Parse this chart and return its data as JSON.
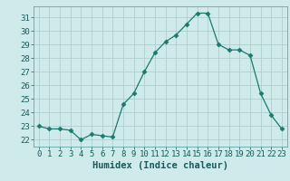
{
  "x": [
    0,
    1,
    2,
    3,
    4,
    5,
    6,
    7,
    8,
    9,
    10,
    11,
    12,
    13,
    14,
    15,
    16,
    17,
    18,
    19,
    20,
    21,
    22,
    23
  ],
  "y": [
    23.0,
    22.8,
    22.8,
    22.7,
    22.0,
    22.4,
    22.3,
    22.2,
    24.6,
    25.4,
    27.0,
    28.4,
    29.2,
    29.7,
    30.5,
    31.3,
    31.3,
    29.0,
    28.6,
    28.6,
    28.2,
    25.4,
    23.8,
    22.8
  ],
  "line_color": "#1a7a6e",
  "marker": "D",
  "marker_size": 2.5,
  "bg_color": "#ceeaea",
  "grid_color": "#b0cece",
  "xlabel": "Humidex (Indice chaleur)",
  "ylabel_ticks": [
    22,
    23,
    24,
    25,
    26,
    27,
    28,
    29,
    30,
    31
  ],
  "xlim": [
    -0.5,
    23.5
  ],
  "ylim": [
    21.5,
    31.8
  ],
  "xticks": [
    0,
    1,
    2,
    3,
    4,
    5,
    6,
    7,
    8,
    9,
    10,
    11,
    12,
    13,
    14,
    15,
    16,
    17,
    18,
    19,
    20,
    21,
    22,
    23
  ],
  "tick_fontsize": 6.5,
  "xlabel_fontsize": 7.5
}
